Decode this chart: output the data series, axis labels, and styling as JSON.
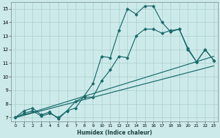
{
  "xlabel": "Humidex (Indice chaleur)",
  "background_color": "#cdeaea",
  "grid_color": "#aacccc",
  "line_color": "#1a6b6b",
  "xlim": [
    -0.5,
    23.5
  ],
  "ylim": [
    6.7,
    15.5
  ],
  "xticks": [
    0,
    1,
    2,
    3,
    4,
    5,
    6,
    7,
    8,
    9,
    10,
    11,
    12,
    13,
    14,
    15,
    16,
    17,
    18,
    19,
    20,
    21,
    22,
    23
  ],
  "yticks": [
    7,
    8,
    9,
    10,
    11,
    12,
    13,
    14,
    15
  ],
  "line1_x": [
    0,
    1,
    2,
    3,
    4,
    5,
    6,
    7,
    8,
    9,
    10,
    11,
    12,
    13,
    14,
    15,
    16,
    17,
    18,
    19,
    20,
    21,
    22,
    23
  ],
  "line1_y": [
    7.0,
    7.5,
    7.7,
    7.2,
    7.4,
    6.9,
    7.5,
    7.7,
    8.6,
    9.5,
    11.5,
    11.4,
    13.4,
    15.0,
    14.6,
    15.2,
    15.2,
    14.0,
    13.3,
    13.5,
    12.1,
    11.1,
    12.0,
    11.2
  ],
  "line2_x": [
    0,
    1,
    2,
    3,
    4,
    5,
    6,
    7,
    8,
    9,
    10,
    11,
    12,
    13,
    14,
    15,
    16,
    17,
    18,
    19,
    20,
    21,
    22,
    23
  ],
  "line2_y": [
    7.0,
    7.3,
    7.5,
    7.1,
    7.3,
    7.0,
    7.5,
    8.2,
    8.5,
    8.5,
    9.7,
    10.5,
    11.5,
    11.4,
    13.0,
    13.5,
    13.5,
    13.2,
    13.4,
    13.5,
    12.0,
    11.1,
    12.0,
    11.2
  ],
  "line3_x": [
    0,
    23
  ],
  "line3_y": [
    7.0,
    11.5
  ],
  "line4_x": [
    0,
    23
  ],
  "line4_y": [
    7.0,
    10.8
  ]
}
